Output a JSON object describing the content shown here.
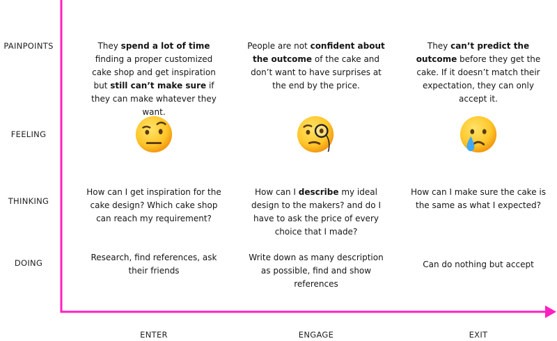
{
  "axes": {
    "color": "#ff1fbf",
    "rows": [
      {
        "id": "painpoints",
        "label": "PAINPOINTS"
      },
      {
        "id": "feeling",
        "label": "FEELING"
      },
      {
        "id": "thinking",
        "label": "THINKING"
      },
      {
        "id": "doing",
        "label": "DOING"
      }
    ],
    "columns": [
      {
        "id": "enter",
        "label": "ENTER"
      },
      {
        "id": "engage",
        "label": "ENGAGE"
      },
      {
        "id": "exit",
        "label": "EXIT"
      }
    ]
  },
  "painpoints": {
    "enter": [
      "They ",
      "spend a lot of time",
      " finding a proper customized cake shop and get inspiration but ",
      "still can’t make sure",
      " if they can make whatever they want."
    ],
    "engage": [
      "People are not ",
      "confident about the outcome",
      " of the cake and don’t want to have surprises at the end by the price."
    ],
    "exit": [
      "They ",
      "can’t predict the outcome",
      " before they get the cake. If it doesn’t match their expectation, they can only accept it."
    ]
  },
  "feeling": {
    "enter": "raised-eyebrow-face-icon",
    "engage": "face-with-monocle-icon",
    "exit": "crying-face-icon"
  },
  "thinking": {
    "enter": "How can I get inspiration for the cake design? Which cake shop can reach my requirement?",
    "engage": [
      "How can I ",
      "describe",
      " my ideal design to the makers? and do I have to ask the price of every choice that I made?"
    ],
    "exit": "How can I make sure the cake is the same as what I expected?"
  },
  "doing": {
    "enter": "Research, find references, ask their friends",
    "engage": "Write down as many description as possible, find and show references",
    "exit": "Can do nothing but accept"
  }
}
